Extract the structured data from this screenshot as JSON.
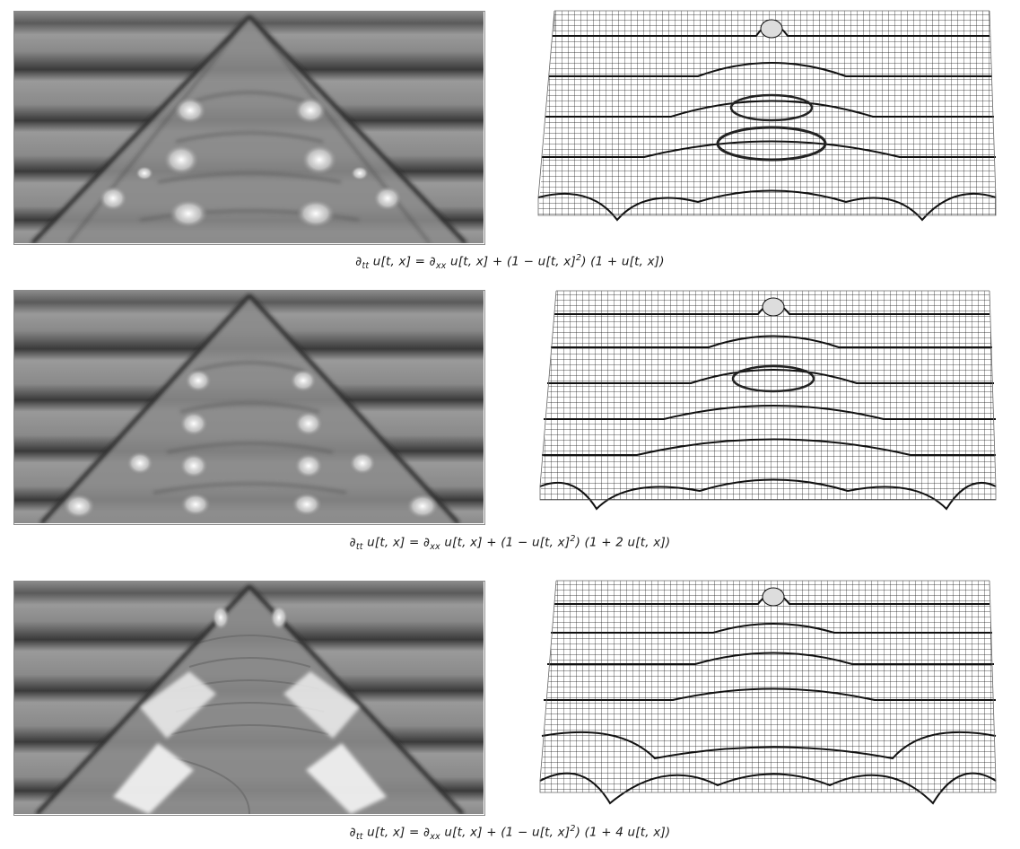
{
  "figure": {
    "rows": [
      {
        "density_plot_icon": "density-plot-image",
        "surface_plot_icon": "mesh-surface-image",
        "equation": {
          "lhs_d": "∂",
          "lhs_sub": "tt",
          "lhs_u": " u[t, x] = ",
          "rhs_d": "∂",
          "rhs_sub": "xx",
          "rhs_mid": " u[t, x] + (1 − u[t, x]",
          "rhs_sup": "2",
          "rhs_tail": ") (1 + u[t, x])"
        }
      },
      {
        "density_plot_icon": "density-plot-image",
        "surface_plot_icon": "mesh-surface-image",
        "equation": {
          "lhs_d": "∂",
          "lhs_sub": "tt",
          "lhs_u": " u[t, x] = ",
          "rhs_d": "∂",
          "rhs_sub": "xx",
          "rhs_mid": " u[t, x] + (1 − u[t, x]",
          "rhs_sup": "2",
          "rhs_tail": ") (1 + 2 u[t, x])"
        }
      },
      {
        "density_plot_icon": "density-plot-image",
        "surface_plot_icon": "mesh-surface-image",
        "equation": {
          "lhs_d": "∂",
          "lhs_sub": "tt",
          "lhs_u": " u[t, x] = ",
          "rhs_d": "∂",
          "rhs_sub": "xx",
          "rhs_mid": " u[t, x] + (1 − u[t, x]",
          "rhs_sup": "2",
          "rhs_tail": ") (1 + 4 u[t, x])"
        }
      }
    ],
    "colors": {
      "background": "#ffffff",
      "gray_mid": "#8c8c8c",
      "dark_band": "#2a2a2a",
      "light_spot": "#f2f2f2",
      "mesh_line": "#111111"
    }
  }
}
